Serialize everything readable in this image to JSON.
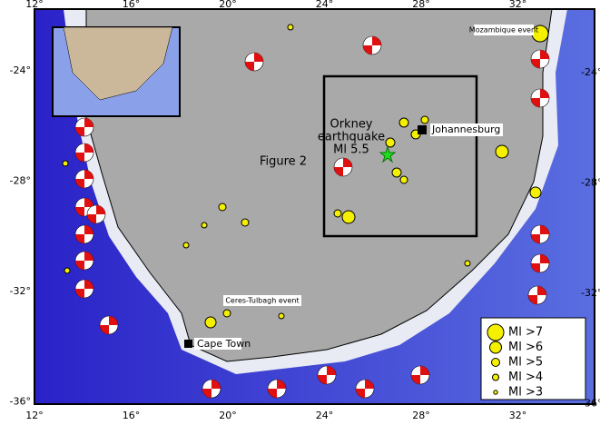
{
  "map": {
    "x_ticks": [
      "12°",
      "16°",
      "20°",
      "24°",
      "28°",
      "32°"
    ],
    "y_ticks": [
      "-24°",
      "-28°",
      "-32°",
      "-36°"
    ],
    "labels": {
      "mozambique": "Mozambique event",
      "orkney": [
        "Orkney",
        "earthquake",
        "Ml 5.5"
      ],
      "figure": "Figure 2",
      "johannesburg": "Johannesburg",
      "ceres": "Ceres-Tulbagh event",
      "cape_town": "Cape Town"
    },
    "legend": [
      "Ml >7",
      "Ml >6",
      "Ml >5",
      "Ml >4",
      "Ml >3"
    ]
  }
}
